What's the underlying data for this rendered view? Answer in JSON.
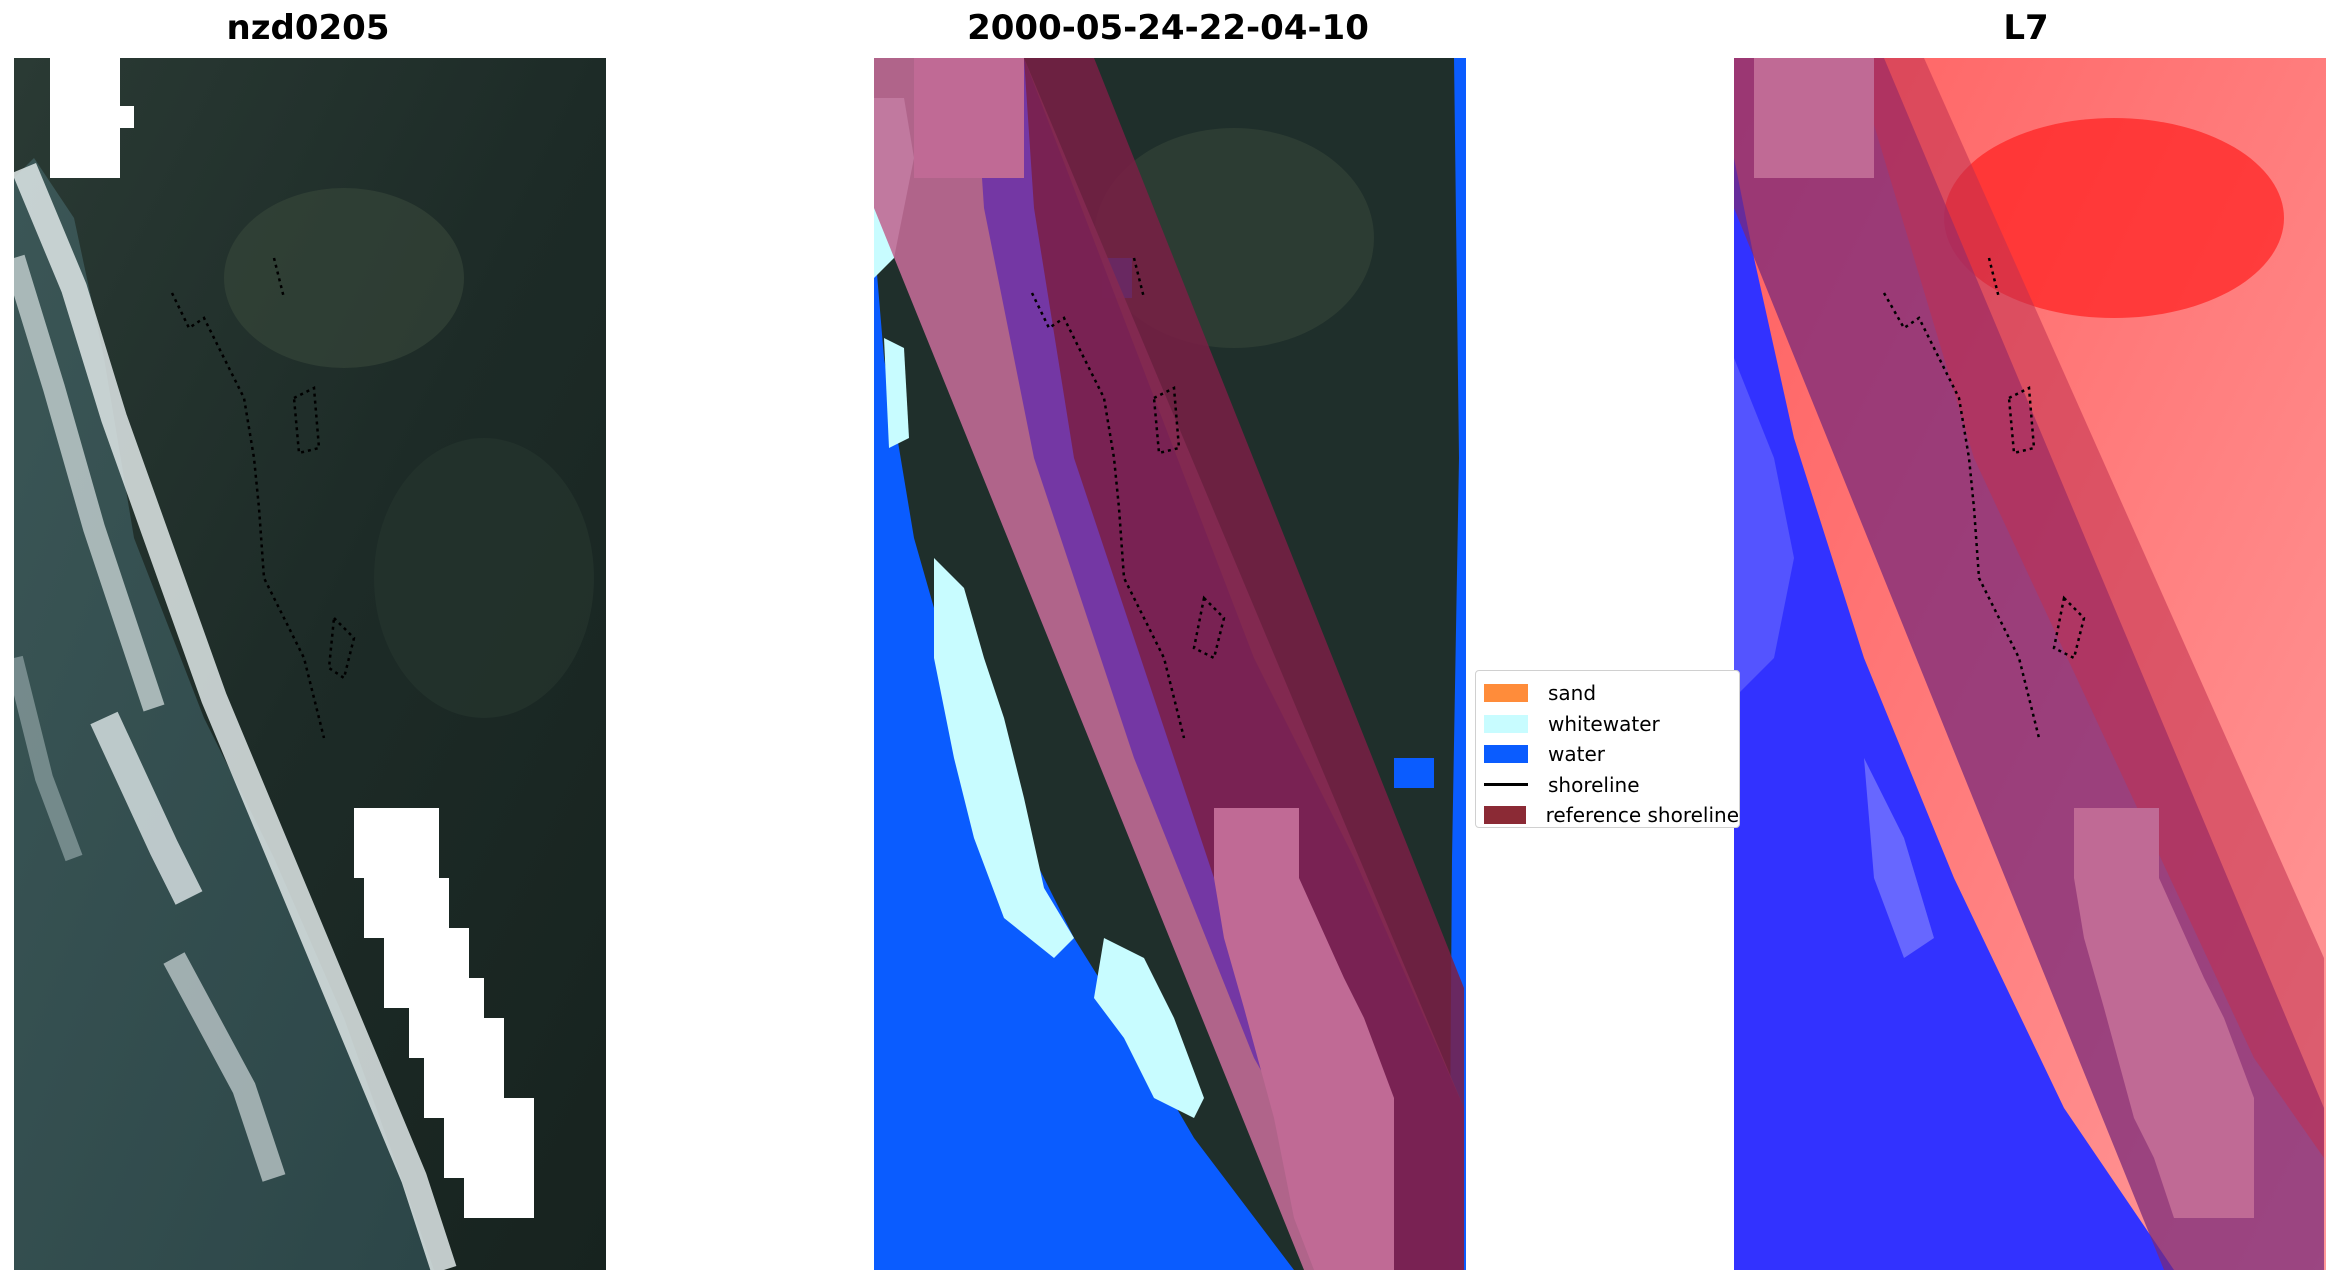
{
  "titles": {
    "left": "nzd0205",
    "middle": "2000-05-24-22-04-10",
    "right": "L7"
  },
  "legend": {
    "items": [
      {
        "label": "sand",
        "color": "#ff8c3a",
        "kind": "patch"
      },
      {
        "label": "whitewater",
        "color": "#c8fcff",
        "kind": "patch"
      },
      {
        "label": "water",
        "color": "#0a5cff",
        "kind": "patch"
      },
      {
        "label": "shoreline",
        "color": "#000000",
        "kind": "line"
      },
      {
        "label": "reference shoreline",
        "color": "#8b2a35",
        "kind": "patch"
      }
    ]
  },
  "colors": {
    "land": "#1e2d2a",
    "sea": "#2f4a4c",
    "surf": "#dfe7e8",
    "mask_white": "#ffffff",
    "water_class": "#0a5cff",
    "whitewater_class": "#c8fcff",
    "buffer_pink": "#c06a95",
    "buffer_purple": "#6a2fa8",
    "buffer_maroon": "#7a1f45",
    "index_red": "#ff3030",
    "index_blue": "#2020ff"
  }
}
